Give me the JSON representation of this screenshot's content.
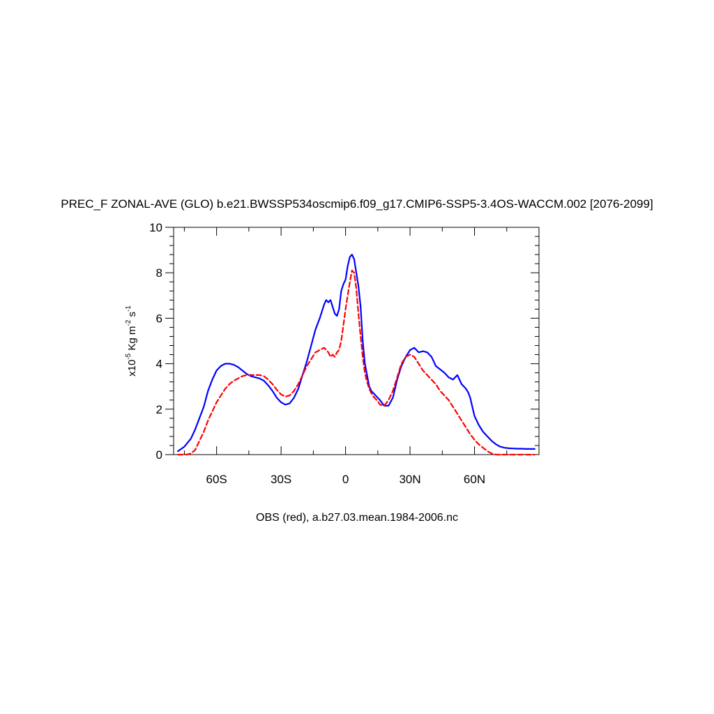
{
  "chart_data": {
    "type": "line",
    "title": "PREC_F ZONAL-AVE (GLO) b.e21.BWSSP534oscmip6.f09_g17.CMIP6-SSP5-3.4OS-WACCM.002 [2076-2099]",
    "caption": "OBS (red), a.b27.03.mean.1984-2006.nc",
    "ylabel": {
      "prefix": "x10",
      "exp": "-5",
      "unit": " Kg m",
      "unit_exp": "-2",
      "unit2": " s",
      "unit2_exp": "-1"
    },
    "xlim": [
      -80,
      90
    ],
    "ylim": [
      0,
      10
    ],
    "xticks": [
      {
        "value": -60,
        "label": "60S"
      },
      {
        "value": -30,
        "label": "30S"
      },
      {
        "value": 0,
        "label": "0"
      },
      {
        "value": 30,
        "label": "30N"
      },
      {
        "value": 60,
        "label": "60N"
      }
    ],
    "yticks": [
      {
        "value": 0,
        "label": "0"
      },
      {
        "value": 2,
        "label": "2"
      },
      {
        "value": 4,
        "label": "4"
      },
      {
        "value": 6,
        "label": "6"
      },
      {
        "value": 8,
        "label": "8"
      },
      {
        "value": 10,
        "label": "10"
      }
    ],
    "grid": false,
    "legend": "none",
    "series": [
      {
        "color": "#0000ff",
        "dash": "solid",
        "x": [
          -78,
          -75,
          -72,
          -70,
          -68,
          -66,
          -64,
          -62,
          -60,
          -58,
          -56,
          -54,
          -52,
          -50,
          -48,
          -46,
          -44,
          -42,
          -40,
          -38,
          -36,
          -34,
          -32,
          -30,
          -28,
          -26,
          -24,
          -22,
          -20,
          -18,
          -16,
          -14,
          -12,
          -10,
          -9,
          -8,
          -7,
          -6,
          -5,
          -4,
          -3,
          -2,
          -1,
          0,
          1,
          2,
          3,
          4,
          5,
          6,
          7,
          8,
          9,
          10,
          11,
          12,
          13,
          14,
          15,
          16,
          18,
          20,
          22,
          23,
          24,
          25,
          26,
          28,
          30,
          32,
          34,
          36,
          38,
          40,
          41,
          42,
          44,
          46,
          48,
          50,
          52,
          54,
          56,
          57,
          58,
          59,
          60,
          62,
          64,
          66,
          68,
          70,
          72,
          74,
          76,
          78,
          80,
          82,
          84,
          86,
          88
        ],
        "y": [
          0.15,
          0.35,
          0.7,
          1.1,
          1.6,
          2.1,
          2.8,
          3.3,
          3.7,
          3.9,
          4.0,
          4.0,
          3.95,
          3.85,
          3.7,
          3.55,
          3.45,
          3.4,
          3.35,
          3.25,
          3.05,
          2.8,
          2.5,
          2.3,
          2.2,
          2.25,
          2.5,
          2.9,
          3.5,
          4.1,
          4.8,
          5.5,
          6.0,
          6.6,
          6.8,
          6.7,
          6.8,
          6.5,
          6.2,
          6.1,
          6.4,
          7.2,
          7.5,
          7.7,
          8.3,
          8.7,
          8.8,
          8.6,
          8.0,
          7.4,
          6.5,
          5.0,
          4.0,
          3.5,
          3.0,
          2.8,
          2.7,
          2.6,
          2.5,
          2.4,
          2.15,
          2.15,
          2.5,
          2.9,
          3.3,
          3.6,
          3.9,
          4.3,
          4.6,
          4.7,
          4.5,
          4.55,
          4.5,
          4.3,
          4.1,
          3.9,
          3.75,
          3.6,
          3.4,
          3.3,
          3.5,
          3.1,
          2.9,
          2.75,
          2.5,
          2.1,
          1.7,
          1.3,
          1.0,
          0.8,
          0.6,
          0.45,
          0.35,
          0.3,
          0.28,
          0.27,
          0.26,
          0.26,
          0.25,
          0.25,
          0.25
        ]
      },
      {
        "color": "#ff0000",
        "dash": "dashed",
        "x": [
          -78,
          -76,
          -74,
          -72,
          -70,
          -68,
          -66,
          -64,
          -62,
          -60,
          -58,
          -56,
          -54,
          -52,
          -50,
          -48,
          -46,
          -44,
          -42,
          -40,
          -38,
          -36,
          -34,
          -32,
          -30,
          -28,
          -26,
          -24,
          -22,
          -20,
          -18,
          -16,
          -14,
          -12,
          -10,
          -9,
          -8,
          -7,
          -6,
          -5,
          -4,
          -3,
          -2,
          -1,
          0,
          1,
          2,
          3,
          4,
          5,
          6,
          7,
          8,
          9,
          10,
          11,
          12,
          13,
          14,
          15,
          16,
          18,
          20,
          22,
          23,
          24,
          25,
          26,
          28,
          30,
          32,
          34,
          36,
          38,
          40,
          42,
          44,
          46,
          48,
          50,
          52,
          54,
          56,
          58,
          60,
          62,
          64,
          66,
          68,
          70,
          72,
          74,
          76,
          78,
          80,
          82,
          84,
          86,
          88
        ],
        "y": [
          0.0,
          0.0,
          0.0,
          0.05,
          0.2,
          0.6,
          1.0,
          1.5,
          1.9,
          2.3,
          2.6,
          2.9,
          3.1,
          3.25,
          3.35,
          3.45,
          3.5,
          3.5,
          3.5,
          3.5,
          3.45,
          3.3,
          3.1,
          2.85,
          2.65,
          2.55,
          2.6,
          2.8,
          3.1,
          3.5,
          3.9,
          4.2,
          4.5,
          4.6,
          4.7,
          4.6,
          4.5,
          4.3,
          4.4,
          4.3,
          4.5,
          4.6,
          5.0,
          5.7,
          6.4,
          7.0,
          7.6,
          8.1,
          8.0,
          7.3,
          6.2,
          5.2,
          4.3,
          3.6,
          3.2,
          2.9,
          2.7,
          2.55,
          2.45,
          2.35,
          2.2,
          2.15,
          2.4,
          2.8,
          3.1,
          3.4,
          3.7,
          4.0,
          4.3,
          4.4,
          4.3,
          4.0,
          3.7,
          3.5,
          3.3,
          3.1,
          2.8,
          2.6,
          2.4,
          2.1,
          1.8,
          1.5,
          1.2,
          0.9,
          0.65,
          0.45,
          0.3,
          0.15,
          0.05,
          0.0,
          0.0,
          0.0,
          0.0,
          0.0,
          0.0,
          0.0,
          0.0,
          0.0,
          0.0
        ]
      }
    ]
  }
}
